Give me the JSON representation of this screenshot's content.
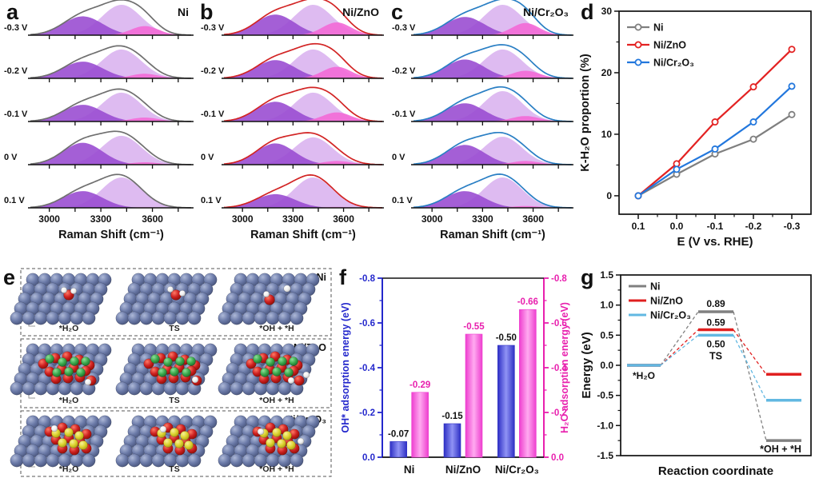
{
  "figure": {
    "background": "#ffffff"
  },
  "panels": {
    "a": {
      "letter": "a",
      "title": "Ni"
    },
    "b": {
      "letter": "b",
      "title": "Ni/ZnO"
    },
    "c": {
      "letter": "c",
      "title": "Ni/Cr₂O₃"
    },
    "d": {
      "letter": "d"
    },
    "e": {
      "letter": "e"
    },
    "f": {
      "letter": "f"
    },
    "g": {
      "letter": "g"
    }
  },
  "chart_data": [
    {
      "id": "a",
      "type": "area",
      "title": "Ni",
      "xlabel": "Raman Shift (cm⁻¹)",
      "x_range": [
        2890,
        3830
      ],
      "x_ticks": [
        3000,
        3300,
        3600
      ],
      "x_minor_ticks": [
        3150,
        3450,
        3750
      ],
      "envelope_color": "#6f6f6f",
      "peak_centers": [
        3195,
        3420,
        3555
      ],
      "peak_sigmas": [
        115,
        115,
        80
      ],
      "peak_colors": [
        "#9a4ed2",
        "#dab4ef",
        "#f36ad6"
      ],
      "voltage_labels": [
        "-0.3 V",
        "-0.2 V",
        "-0.1 V",
        "0 V",
        "0.1 V"
      ],
      "peak_amplitudes": [
        [
          0.62,
          1.0,
          0.3
        ],
        [
          0.55,
          0.95,
          0.15
        ],
        [
          0.55,
          0.95,
          0.13
        ],
        [
          0.72,
          0.95,
          0.08
        ],
        [
          0.55,
          1.0,
          0.02
        ]
      ]
    },
    {
      "id": "b",
      "type": "area",
      "title": "Ni/ZnO",
      "xlabel": "Raman Shift (cm⁻¹)",
      "x_range": [
        2890,
        3830
      ],
      "x_ticks": [
        3000,
        3300,
        3600
      ],
      "x_minor_ticks": [
        3150,
        3450,
        3750
      ],
      "envelope_color": "#d22424",
      "peak_centers": [
        3195,
        3420,
        3560
      ],
      "peak_sigmas": [
        115,
        115,
        85
      ],
      "peak_colors": [
        "#9a4ed2",
        "#dab4ef",
        "#f36ad6"
      ],
      "voltage_labels": [
        "-0.3 V",
        "-0.2 V",
        "-0.1 V",
        "0 V",
        "0.1 V"
      ],
      "peak_amplitudes": [
        [
          0.68,
          1.0,
          0.42
        ],
        [
          0.6,
          0.95,
          0.38
        ],
        [
          0.65,
          0.95,
          0.3
        ],
        [
          0.7,
          0.9,
          0.12
        ],
        [
          0.45,
          1.0,
          0.03
        ]
      ]
    },
    {
      "id": "c",
      "type": "area",
      "title": "Ni/Cr₂O₃",
      "xlabel": "Raman Shift (cm⁻¹)",
      "x_range": [
        2890,
        3830
      ],
      "x_ticks": [
        3000,
        3300,
        3600
      ],
      "x_minor_ticks": [
        3150,
        3450,
        3750
      ],
      "envelope_color": "#2a7fc4",
      "peak_centers": [
        3195,
        3420,
        3555
      ],
      "peak_sigmas": [
        115,
        115,
        82
      ],
      "peak_colors": [
        "#9a4ed2",
        "#dab4ef",
        "#f36ad6"
      ],
      "voltage_labels": [
        "-0.3 V",
        "-0.2 V",
        "-0.1 V",
        "0 V",
        "0.1 V"
      ],
      "peak_amplitudes": [
        [
          0.6,
          1.0,
          0.4
        ],
        [
          0.62,
          0.95,
          0.25
        ],
        [
          0.6,
          1.0,
          0.18
        ],
        [
          0.65,
          0.92,
          0.12
        ],
        [
          0.55,
          1.0,
          0.06
        ]
      ]
    },
    {
      "id": "d",
      "type": "line",
      "xlabel": "E (V vs. RHE)",
      "ylabel": "K-H₂O proportion (%)",
      "x_tick_labels": [
        "0.1",
        "0.0",
        "-0.1",
        "-0.2",
        "-0.3"
      ],
      "y_ticks": [
        0,
        10,
        20,
        30
      ],
      "y_minor_ticks": [
        5,
        15,
        25
      ],
      "ylim": [
        0,
        30
      ],
      "legend_position": "top-left",
      "series": [
        {
          "name": "Ni",
          "color": "#7f7f7f",
          "values": [
            0,
            3.5,
            6.8,
            9.2,
            13.2
          ]
        },
        {
          "name": "Ni/ZnO",
          "color": "#e32222",
          "values": [
            0,
            5.2,
            12.0,
            17.7,
            23.8
          ]
        },
        {
          "name": "Ni/Cr₂O₃",
          "color": "#2277dd",
          "values": [
            0,
            4.3,
            7.6,
            12.0,
            17.8
          ]
        }
      ]
    },
    {
      "id": "f",
      "type": "bar",
      "categories": [
        "Ni",
        "Ni/ZnO",
        "Ni/Cr₂O₃"
      ],
      "ylim": [
        0,
        -0.8
      ],
      "left_axis": {
        "label": "OH* adsorption energy (eV)",
        "color": "#2428cc",
        "ticks": [
          "0.0",
          "-0.2",
          "-0.4",
          "-0.6",
          "-0.8"
        ]
      },
      "right_axis": {
        "label": "H₂O adsorption energy (eV)",
        "color": "#e820ae",
        "ticks": [
          "0.0",
          "-0.2",
          "-0.4",
          "-0.6",
          "-0.8"
        ]
      },
      "series": [
        {
          "name": "OH* adsorption energy",
          "axis": "left",
          "bar_edge_color": "#2d2fc4",
          "bar_center_color": "#9093f5",
          "values": [
            -0.07,
            -0.15,
            -0.5
          ],
          "value_labels": [
            "-0.07",
            "-0.15",
            "-0.50"
          ],
          "label_color": "#111111"
        },
        {
          "name": "H₂O adsorption energy",
          "axis": "right",
          "bar_edge_color": "#ee3ecf",
          "bar_center_color": "#ffaaf0",
          "values": [
            -0.29,
            -0.55,
            -0.66
          ],
          "value_labels": [
            "-0.29",
            "-0.55",
            "-0.66"
          ],
          "label_color": "#e820ae"
        }
      ]
    },
    {
      "id": "g",
      "type": "line",
      "variant": "energy-levels",
      "xlabel": "Reaction coordinate",
      "ylabel": "Energy (eV)",
      "ylim": [
        -1.5,
        1.5
      ],
      "y_tick_labels": [
        "1.5",
        "1.0",
        "0.5",
        "0.0",
        "-0.5",
        "-1.0",
        "-1.5"
      ],
      "stages": [
        "*H₂O",
        "TS",
        "*OH + *H"
      ],
      "ts_label": "TS",
      "ts_value_labels": [
        "0.89",
        "0.59",
        "0.50"
      ],
      "series": [
        {
          "name": "Ni",
          "color": "#808080",
          "values": [
            0,
            0.89,
            -1.25
          ]
        },
        {
          "name": "Ni/ZnO",
          "color": "#e01f1f",
          "values": [
            0,
            0.59,
            -0.15
          ]
        },
        {
          "name": "Ni/Cr₂O₃",
          "color": "#62b8e2",
          "values": [
            0,
            0.5,
            -0.58
          ]
        }
      ]
    }
  ],
  "structures": {
    "panel": "e",
    "columns": [
      "*H₂O",
      "TS",
      "*OH + *H"
    ],
    "rows": [
      {
        "label": "Ni",
        "overlay": "ni"
      },
      {
        "label": "Ni/ZnO",
        "overlay": "zno"
      },
      {
        "label": "Ni/Cr₂O₃",
        "overlay": "cr2o3"
      }
    ],
    "atom_colors": {
      "Ni_surface": "#6b7aa8",
      "O": "#cc2020",
      "H": "#ffffff",
      "Zn": "#3aa94c",
      "Cr": "#ddd32f"
    }
  }
}
